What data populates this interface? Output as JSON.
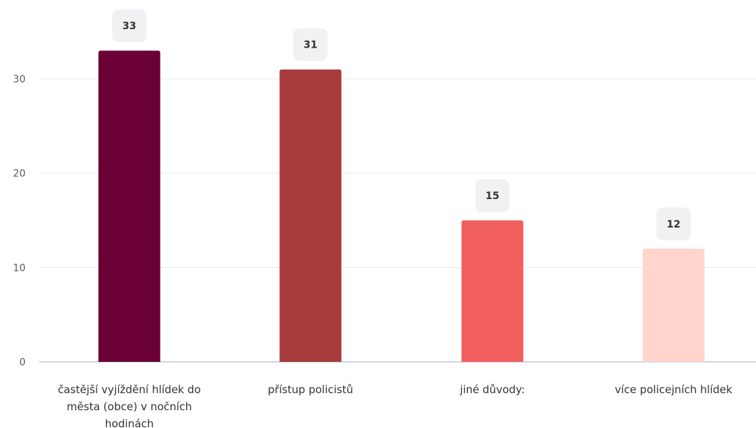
{
  "chart_data": {
    "type": "bar",
    "categories": [
      [
        "častější vyjíždění hlídek do",
        "města (obce) v nočních",
        "hodinách"
      ],
      [
        "přístup policistů"
      ],
      [
        "jiné důvody:"
      ],
      [
        "více policejních hlídek"
      ]
    ],
    "values": [
      33,
      31,
      15,
      12
    ],
    "ylim": [
      0,
      35
    ],
    "yticks": [
      0,
      10,
      20,
      30
    ],
    "colors": [
      "#6b0036",
      "#a83c3c",
      "#f05e5e",
      "#ffd5cc"
    ],
    "grid": true,
    "data_labels": true,
    "label_bg": "#f0f1f3"
  }
}
